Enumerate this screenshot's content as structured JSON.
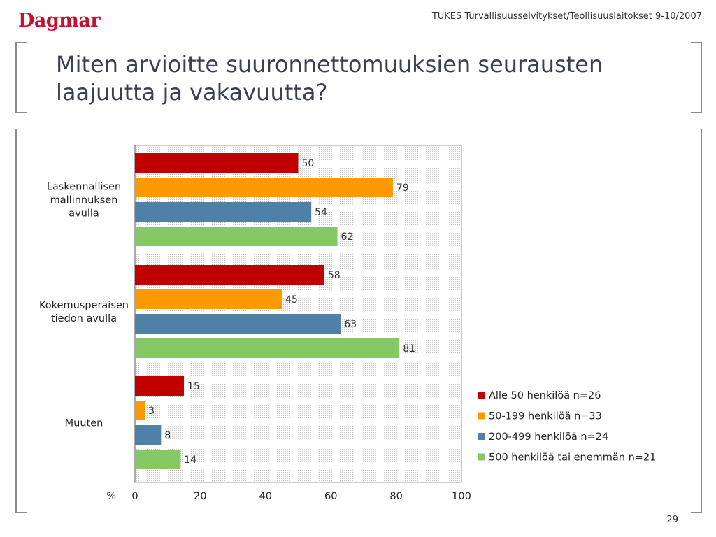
{
  "header": {
    "logo": "Dagmar",
    "source": "TUKES Turvallisuusselvitykset/Teollisuuslaitokset 9-10/2007"
  },
  "title_lines": [
    "Miten arvioitte suuronnettomuuksien seurausten",
    "laajuutta ja vakavuutta?"
  ],
  "page_number": "29",
  "colors": {
    "alle50": "#c00000",
    "50_199": "#ff9900",
    "200_499": "#4f81a8",
    "500plus": "#86c766",
    "plot_bg": "#f2f2f2",
    "grid": "#d0d0d0"
  },
  "chart_data": {
    "type": "bar",
    "orientation": "horizontal",
    "categories": [
      [
        "Laskennallisen",
        "mallinnuksen",
        "avulla"
      ],
      [
        "Kokemusperäisen",
        "tiedon avulla"
      ],
      [
        "Muuten"
      ]
    ],
    "series": [
      {
        "name": "Alle 50 henkilöä n=26",
        "color": "#c00000",
        "values": [
          50,
          58,
          15
        ]
      },
      {
        "name": "50-199 henkilöä n=33",
        "color": "#ff9900",
        "values": [
          79,
          45,
          3
        ]
      },
      {
        "name": "200-499 henkilöä n=24",
        "color": "#4f81a8",
        "values": [
          54,
          63,
          8
        ]
      },
      {
        "name": "500 henkilöä tai enemmän n=21",
        "color": "#86c766",
        "values": [
          62,
          81,
          14
        ]
      }
    ],
    "xlabel": "%",
    "xlim": [
      0,
      100
    ],
    "xticks": [
      0,
      20,
      40,
      60,
      80,
      100
    ],
    "legend_position": "right",
    "grid": false,
    "data_labels": true
  }
}
